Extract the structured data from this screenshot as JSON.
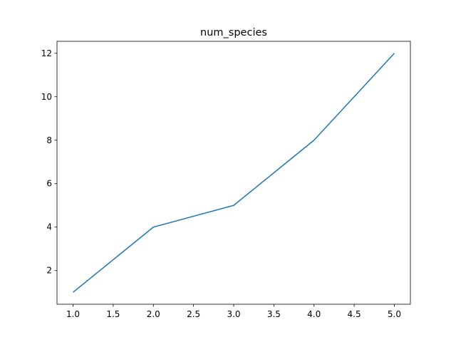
{
  "chart_data": {
    "type": "line",
    "title": "num_species",
    "xlabel": "",
    "ylabel": "",
    "x": [
      1,
      2,
      3,
      4,
      5
    ],
    "series": [
      {
        "values": [
          1,
          4,
          5,
          8,
          12
        ],
        "color": "#1f77b4"
      }
    ],
    "xlim": [
      0.8,
      5.2
    ],
    "ylim": [
      0.45,
      12.55
    ],
    "xticks": [
      "1.0",
      "1.5",
      "2.0",
      "2.5",
      "3.0",
      "3.5",
      "4.0",
      "4.5",
      "5.0"
    ],
    "yticks": [
      "2",
      "4",
      "6",
      "8",
      "10",
      "12"
    ],
    "grid": false,
    "legend": "none"
  }
}
